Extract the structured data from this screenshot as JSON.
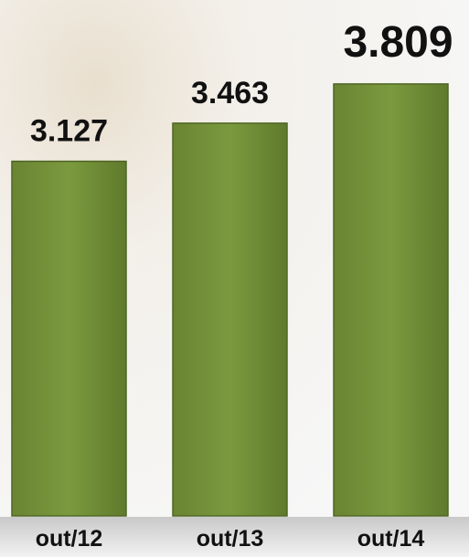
{
  "chart_data": {
    "type": "bar",
    "categories": [
      "out/12",
      "out/13",
      "out/14"
    ],
    "values": [
      3127,
      3463,
      3809
    ],
    "value_labels": [
      "3.127",
      "3.463",
      "3.809"
    ],
    "color": "#77933c"
  }
}
